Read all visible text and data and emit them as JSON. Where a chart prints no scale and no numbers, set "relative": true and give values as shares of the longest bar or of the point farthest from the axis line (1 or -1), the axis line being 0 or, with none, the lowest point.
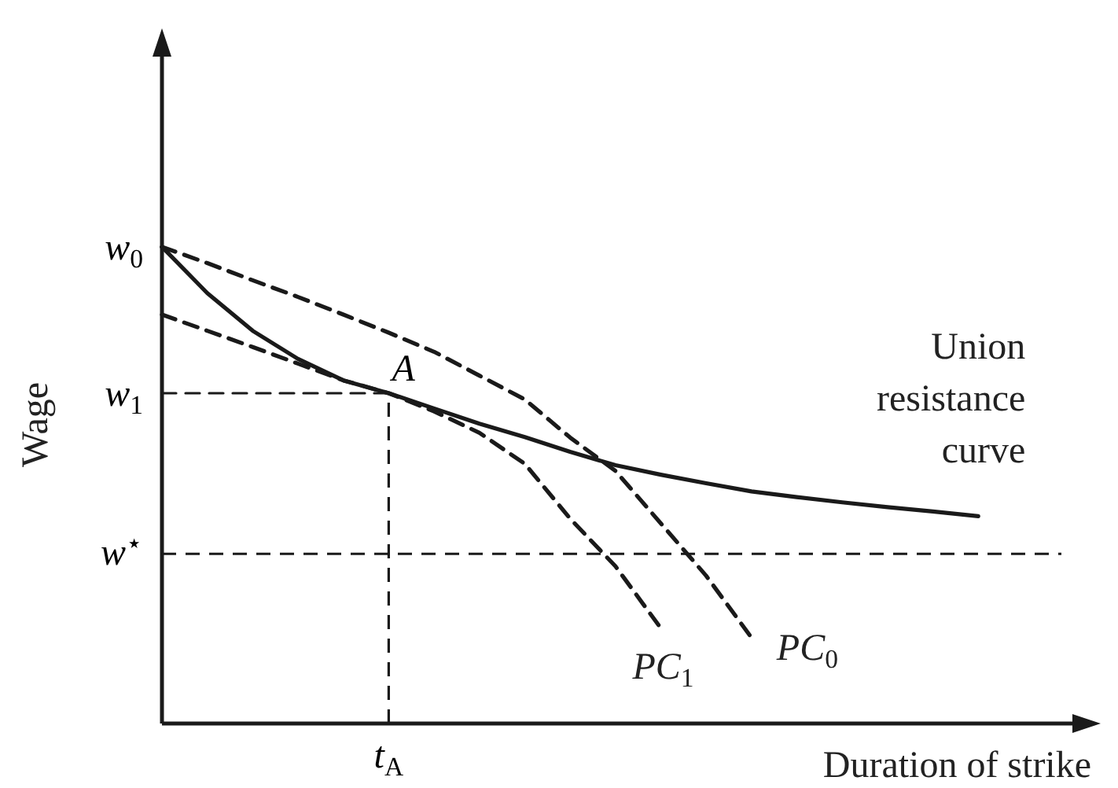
{
  "chart_data": {
    "type": "line",
    "relative": true,
    "xlabel": "Duration of strike",
    "ylabel": "Wage",
    "line_style": "dashed",
    "marker": "none",
    "categories": [
      null,
      null,
      null,
      null,
      null,
      null,
      null,
      null,
      null,
      null,
      null,
      null,
      null,
      null,
      null,
      null,
      null,
      null,
      null,
      null,
      null
    ],
    "series": [
      {
        "name": "Union resistance curve",
        "color": "#1a1a1a",
        "line_style": "solid",
        "values": [
          1,
          0.903,
          0.824,
          0.765,
          0.72,
          0.693,
          0.661,
          0.629,
          0.601,
          0.57,
          0.542,
          0.522,
          0.504,
          0.487,
          0.475,
          0.464,
          0.454,
          0.445,
          0.435,
          null,
          null
        ]
      },
      {
        "name": "PC$_{0}$",
        "color": "#1a1a1a",
        "values": [
          1,
          0.966,
          0.93,
          0.895,
          0.858,
          0.82,
          0.78,
          0.73,
          0.68,
          0.6,
          0.53,
          0.42,
          0.31,
          0.18,
          null,
          null,
          null,
          null,
          null,
          null,
          null
        ]
      },
      {
        "name": "PC$_{1}$",
        "color": "#1a1a1a",
        "values": [
          0.858,
          0.824,
          0.79,
          0.755,
          0.72,
          0.693,
          0.655,
          0.61,
          0.545,
          0.43,
          0.33,
          0.2,
          null,
          null,
          null,
          null,
          null,
          null,
          null,
          null,
          null
        ]
      },
      {
        "color": "#1a1a1a",
        "values": [
          0.693,
          0.693,
          0.693,
          0.693,
          0.693,
          0.693,
          null,
          null,
          null,
          null,
          null,
          null,
          null,
          null,
          null,
          null,
          null,
          null,
          null,
          null,
          null
        ]
      }
    ],
    "ref_lines": [
      {
        "axis": "y",
        "value": 0.356,
        "label": "w$^{⋆}$",
        "line_style": "dashed",
        "color": "#1a1a1a"
      },
      {
        "axis": "x",
        "value": "t$_{A}$",
        "line_style": "dashed",
        "color": "#1a1a1a"
      }
    ],
    "annotations": [
      "w$_{0}$",
      "w$_{1}$",
      {
        "text": "A",
        "y": 0.693
      }
    ]
  }
}
